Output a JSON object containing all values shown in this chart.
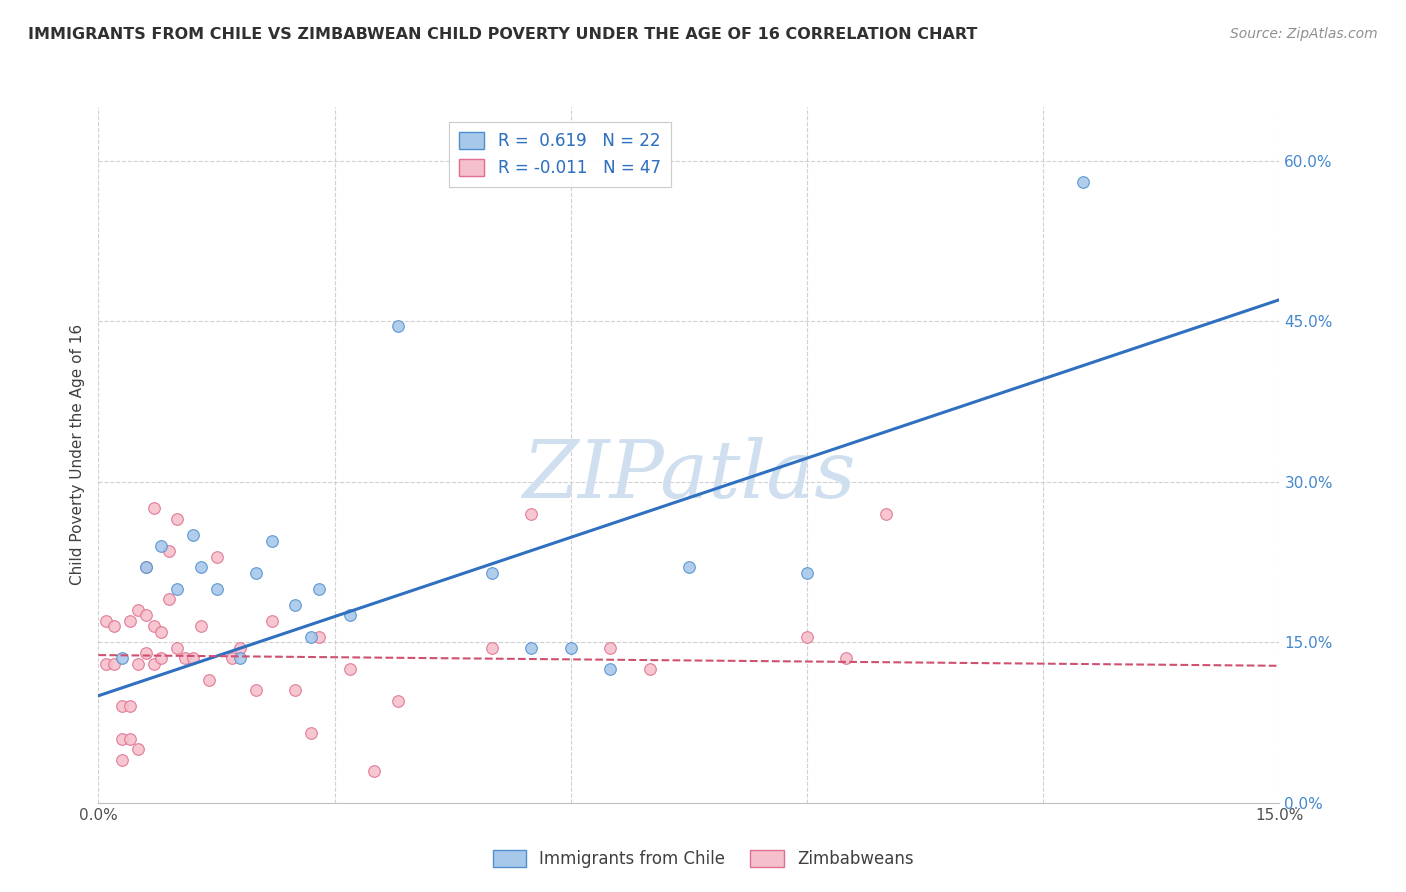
{
  "title": "IMMIGRANTS FROM CHILE VS ZIMBABWEAN CHILD POVERTY UNDER THE AGE OF 16 CORRELATION CHART",
  "source": "Source: ZipAtlas.com",
  "ylabel": "Child Poverty Under the Age of 16",
  "xlim": [
    0.0,
    0.15
  ],
  "ylim": [
    0.0,
    0.65
  ],
  "xticks": [
    0.0,
    0.03,
    0.06,
    0.09,
    0.12,
    0.15
  ],
  "xtick_labels": [
    "0.0%",
    "",
    "",
    "",
    "",
    "15.0%"
  ],
  "yticks_right": [
    0.0,
    0.15,
    0.3,
    0.45,
    0.6
  ],
  "ytick_labels_right": [
    "0.0%",
    "15.0%",
    "30.0%",
    "45.0%",
    "60.0%"
  ],
  "blue_R": "0.619",
  "blue_N": "22",
  "pink_R": "-0.011",
  "pink_N": "47",
  "legend_label_blue": "Immigrants from Chile",
  "legend_label_pink": "Zimbabweans",
  "watermark": "ZIPatlas",
  "blue_scatter_x": [
    0.003,
    0.006,
    0.008,
    0.01,
    0.012,
    0.013,
    0.015,
    0.018,
    0.02,
    0.022,
    0.025,
    0.027,
    0.028,
    0.032,
    0.038,
    0.05,
    0.055,
    0.06,
    0.065,
    0.075,
    0.09,
    0.125
  ],
  "blue_scatter_y": [
    0.135,
    0.22,
    0.24,
    0.2,
    0.25,
    0.22,
    0.2,
    0.135,
    0.215,
    0.245,
    0.185,
    0.155,
    0.2,
    0.175,
    0.445,
    0.215,
    0.145,
    0.145,
    0.125,
    0.22,
    0.215,
    0.58
  ],
  "pink_scatter_x": [
    0.001,
    0.001,
    0.002,
    0.002,
    0.003,
    0.003,
    0.003,
    0.004,
    0.004,
    0.004,
    0.005,
    0.005,
    0.005,
    0.006,
    0.006,
    0.006,
    0.007,
    0.007,
    0.007,
    0.008,
    0.008,
    0.009,
    0.009,
    0.01,
    0.01,
    0.011,
    0.012,
    0.013,
    0.014,
    0.015,
    0.017,
    0.018,
    0.02,
    0.022,
    0.025,
    0.027,
    0.028,
    0.032,
    0.035,
    0.038,
    0.05,
    0.055,
    0.065,
    0.07,
    0.09,
    0.095,
    0.1
  ],
  "pink_scatter_y": [
    0.13,
    0.17,
    0.13,
    0.165,
    0.04,
    0.06,
    0.09,
    0.06,
    0.09,
    0.17,
    0.05,
    0.13,
    0.18,
    0.14,
    0.175,
    0.22,
    0.13,
    0.165,
    0.275,
    0.135,
    0.16,
    0.19,
    0.235,
    0.145,
    0.265,
    0.135,
    0.135,
    0.165,
    0.115,
    0.23,
    0.135,
    0.145,
    0.105,
    0.17,
    0.105,
    0.065,
    0.155,
    0.125,
    0.03,
    0.095,
    0.145,
    0.27,
    0.145,
    0.125,
    0.155,
    0.135,
    0.27
  ],
  "blue_line_x": [
    0.0,
    0.15
  ],
  "blue_line_y": [
    0.1,
    0.47
  ],
  "pink_line_x": [
    0.0,
    0.15
  ],
  "pink_line_y": [
    0.138,
    0.128
  ],
  "blue_scatter_color": "#a8c8ea",
  "blue_scatter_edge": "#5090d0",
  "blue_line_color": "#3070c0",
  "pink_scatter_color": "#f5c0cc",
  "pink_scatter_edge": "#e07090",
  "pink_line_color": "#d05070",
  "background_color": "#ffffff",
  "grid_color": "#d0d0d0",
  "title_color": "#303030",
  "source_color": "#909090",
  "right_tick_color": "#4488cc",
  "watermark_color": "#d0dff0",
  "ylabel_color": "#404040"
}
